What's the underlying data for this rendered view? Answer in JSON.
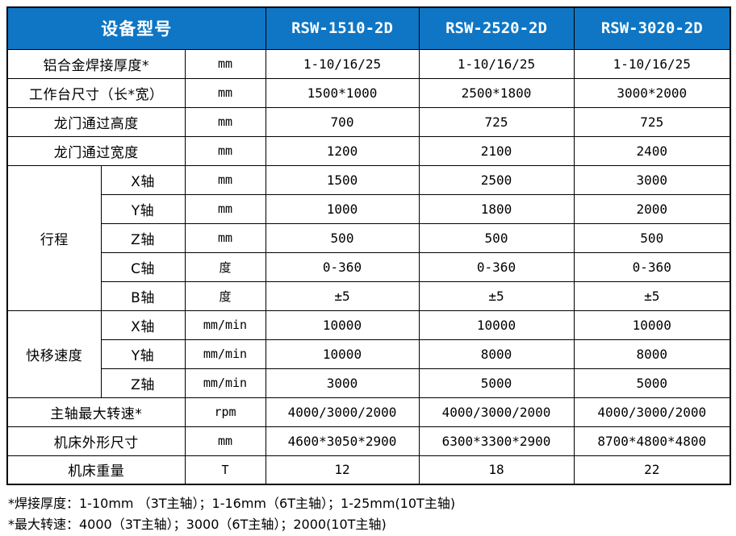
{
  "colors": {
    "header_bg": "#0E76C4",
    "header_text": "#FFFFFF",
    "grid": "#000000"
  },
  "header": {
    "model_title": "设备型号",
    "models": [
      "RSW-1510-2D",
      "RSW-2520-2D",
      "RSW-3020-2D"
    ]
  },
  "rows": {
    "weld_thickness": {
      "label": "铝合金焊接厚度*",
      "unit": "mm",
      "values": [
        "1-10/16/25",
        "1-10/16/25",
        "1-10/16/25"
      ]
    },
    "table_size": {
      "label": "工作台尺寸（长*宽）",
      "unit": "mm",
      "values": [
        "1500*1000",
        "2500*1800",
        "3000*2000"
      ]
    },
    "gantry_height": {
      "label": "龙门通过高度",
      "unit": "mm",
      "values": [
        "700",
        "725",
        "725"
      ]
    },
    "gantry_width": {
      "label": "龙门通过宽度",
      "unit": "mm",
      "values": [
        "1200",
        "2100",
        "2400"
      ]
    },
    "travel_group": {
      "label": "行程"
    },
    "travel_x": {
      "sub": "X轴",
      "unit": "mm",
      "values": [
        "1500",
        "2500",
        "3000"
      ]
    },
    "travel_y": {
      "sub": "Y轴",
      "unit": "mm",
      "values": [
        "1000",
        "1800",
        "2000"
      ]
    },
    "travel_z": {
      "sub": "Z轴",
      "unit": "mm",
      "values": [
        "500",
        "500",
        "500"
      ]
    },
    "travel_c": {
      "sub": "C轴",
      "unit": "度",
      "values": [
        "0-360",
        "0-360",
        "0-360"
      ]
    },
    "travel_b": {
      "sub": "B轴",
      "unit": "度",
      "values": [
        "±5",
        "±5",
        "±5"
      ]
    },
    "rapid_group": {
      "label": "快移速度"
    },
    "rapid_x": {
      "sub": "X轴",
      "unit": "mm/min",
      "values": [
        "10000",
        "10000",
        "10000"
      ]
    },
    "rapid_y": {
      "sub": "Y轴",
      "unit": "mm/min",
      "values": [
        "10000",
        "8000",
        "8000"
      ]
    },
    "rapid_z": {
      "sub": "Z轴",
      "unit": "mm/min",
      "values": [
        "3000",
        "5000",
        "5000"
      ]
    },
    "spindle_speed": {
      "label": "主轴最大转速*",
      "unit": "rpm",
      "values": [
        "4000/3000/2000",
        "4000/3000/2000",
        "4000/3000/2000"
      ]
    },
    "machine_size": {
      "label": "机床外形尺寸",
      "unit": "mm",
      "values": [
        "4600*3050*2900",
        "6300*3300*2900",
        "8700*4800*4800"
      ]
    },
    "machine_weight": {
      "label": "机床重量",
      "unit": "T",
      "values": [
        "12",
        "18",
        "22"
      ]
    }
  },
  "notes": [
    "*焊接厚度：1-10mm （3T主轴）；1-16mm（6T主轴）；1-25mm(10T主轴)",
    "*最大转速：4000（3T主轴）；3000（6T主轴）；2000(10T主轴)"
  ]
}
